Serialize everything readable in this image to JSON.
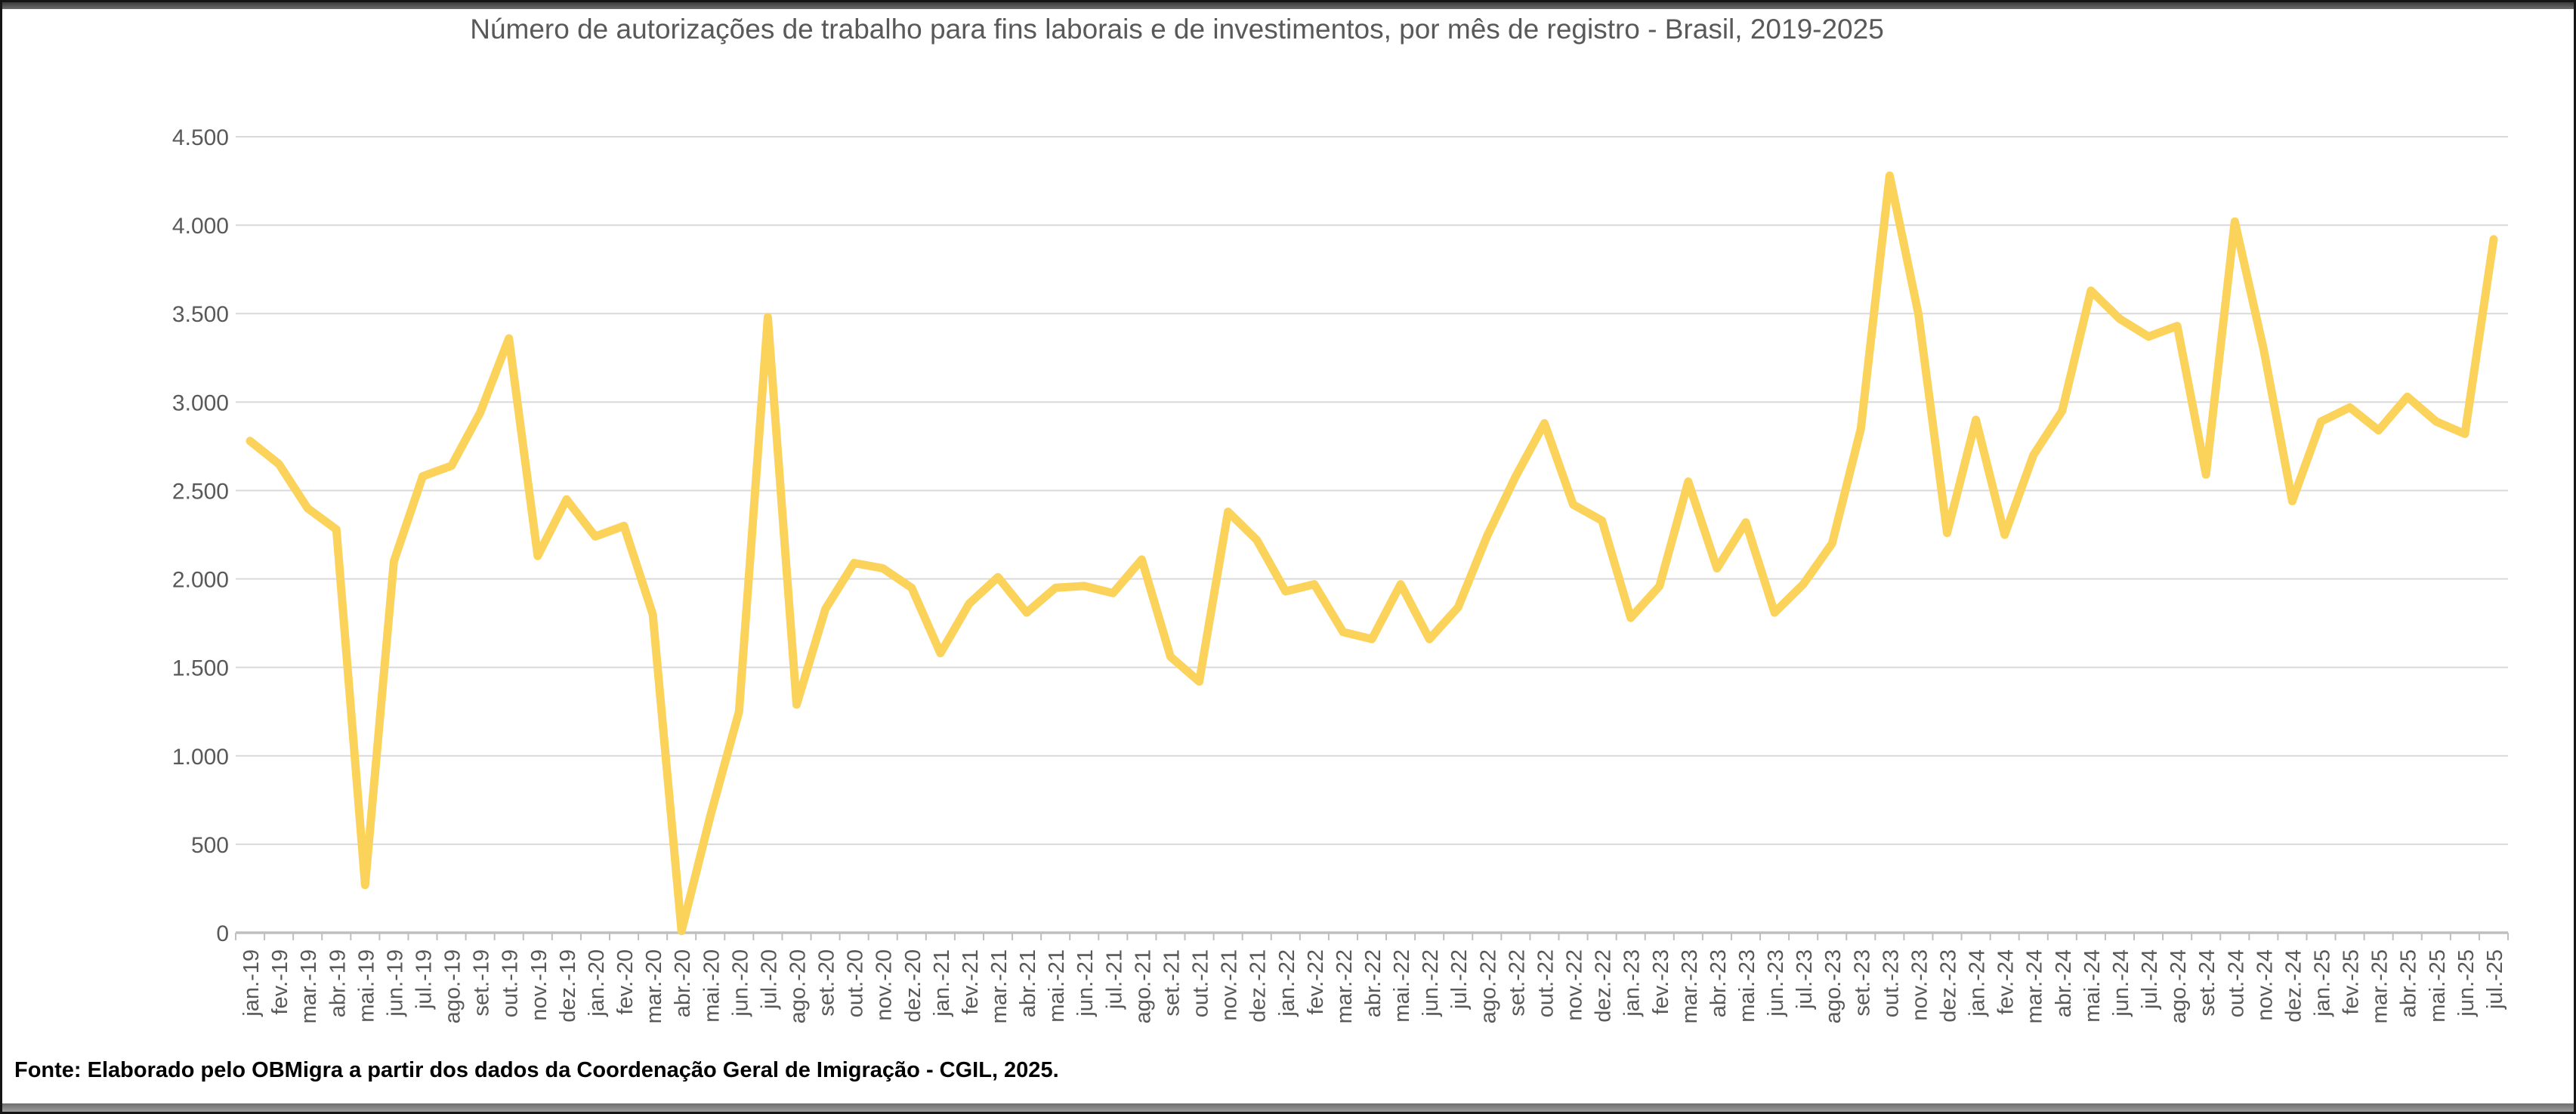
{
  "header": {
    "title": "Número de autorizações de trabalho para fins laborais e de investimentos, por mês de registro - Brasil, 2019-2025"
  },
  "footer": {
    "source": "Fonte: Elaborado pelo OBMigra a partir dos dados da Coordenação Geral de Imigração - CGIL, 2025."
  },
  "colors": {
    "line": "#FBD25A",
    "gridline": "#D9D9D9",
    "axis": "#BFBFBF",
    "tick": "#BFBFBF",
    "label_text": "#595959",
    "title_text": "#595959",
    "footer_text": "#000000",
    "background": "#FFFFFF"
  },
  "chart_data": {
    "type": "line",
    "title": "Número de autorizações de trabalho para fins laborais e de investimentos, por mês de registro - Brasil, 2019-2025",
    "xlabel": "",
    "ylabel": "",
    "ylim": [
      0,
      4500
    ],
    "ytick_step": 500,
    "ytick_labels": [
      "0",
      "500",
      "1.000",
      "1.500",
      "2.000",
      "2.500",
      "3.000",
      "3.500",
      "4.000",
      "4.500"
    ],
    "grid": true,
    "legend": false,
    "categories": [
      "jan.-19",
      "fev.-19",
      "mar.-19",
      "abr.-19",
      "mai.-19",
      "jun.-19",
      "jul.-19",
      "ago.-19",
      "set.-19",
      "out.-19",
      "nov.-19",
      "dez.-19",
      "jan.-20",
      "fev.-20",
      "mar.-20",
      "abr.-20",
      "mai.-20",
      "jun.-20",
      "jul.-20",
      "ago.-20",
      "set.-20",
      "out.-20",
      "nov.-20",
      "dez.-20",
      "jan.-21",
      "fev.-21",
      "mar.-21",
      "abr.-21",
      "mai.-21",
      "jun.-21",
      "jul.-21",
      "ago.-21",
      "set.-21",
      "out.-21",
      "nov.-21",
      "dez.-21",
      "jan.-22",
      "fev.-22",
      "mar.-22",
      "abr.-22",
      "mai.-22",
      "jun.-22",
      "jul.-22",
      "ago.-22",
      "set.-22",
      "out.-22",
      "nov.-22",
      "dez.-22",
      "jan.-23",
      "fev.-23",
      "mar.-23",
      "abr.-23",
      "mai.-23",
      "jun.-23",
      "jul.-23",
      "ago.-23",
      "set.-23",
      "out.-23",
      "nov.-23",
      "dez.-23",
      "jan.-24",
      "fev.-24",
      "mar.-24",
      "abr.-24",
      "mai.-24",
      "jun.-24",
      "jul.-24",
      "ago.-24",
      "set.-24",
      "out.-24",
      "nov.-24",
      "dez.-24",
      "jan.-25",
      "fev.-25",
      "mar.-25",
      "abr.-25",
      "mai.-25",
      "jun.-25",
      "jul.-25"
    ],
    "values": [
      2780,
      2650,
      2400,
      2280,
      270,
      2100,
      2580,
      2640,
      2940,
      3360,
      2130,
      2450,
      2240,
      2300,
      1800,
      10,
      660,
      1250,
      3480,
      1290,
      1830,
      2090,
      2060,
      1950,
      1580,
      1860,
      2010,
      1810,
      1950,
      1960,
      1920,
      2110,
      1560,
      1420,
      2380,
      2220,
      1930,
      1970,
      1700,
      1660,
      1970,
      1660,
      1840,
      2240,
      2580,
      2880,
      2420,
      2330,
      1780,
      1960,
      2550,
      2060,
      2320,
      1810,
      1970,
      2200,
      2850,
      4280,
      3500,
      2260,
      2900,
      2250,
      2700,
      2950,
      3630,
      3470,
      3370,
      3430,
      2590,
      4020,
      3300,
      2440,
      2890,
      2970,
      2840,
      3030,
      2890,
      2820,
      3920
    ]
  }
}
